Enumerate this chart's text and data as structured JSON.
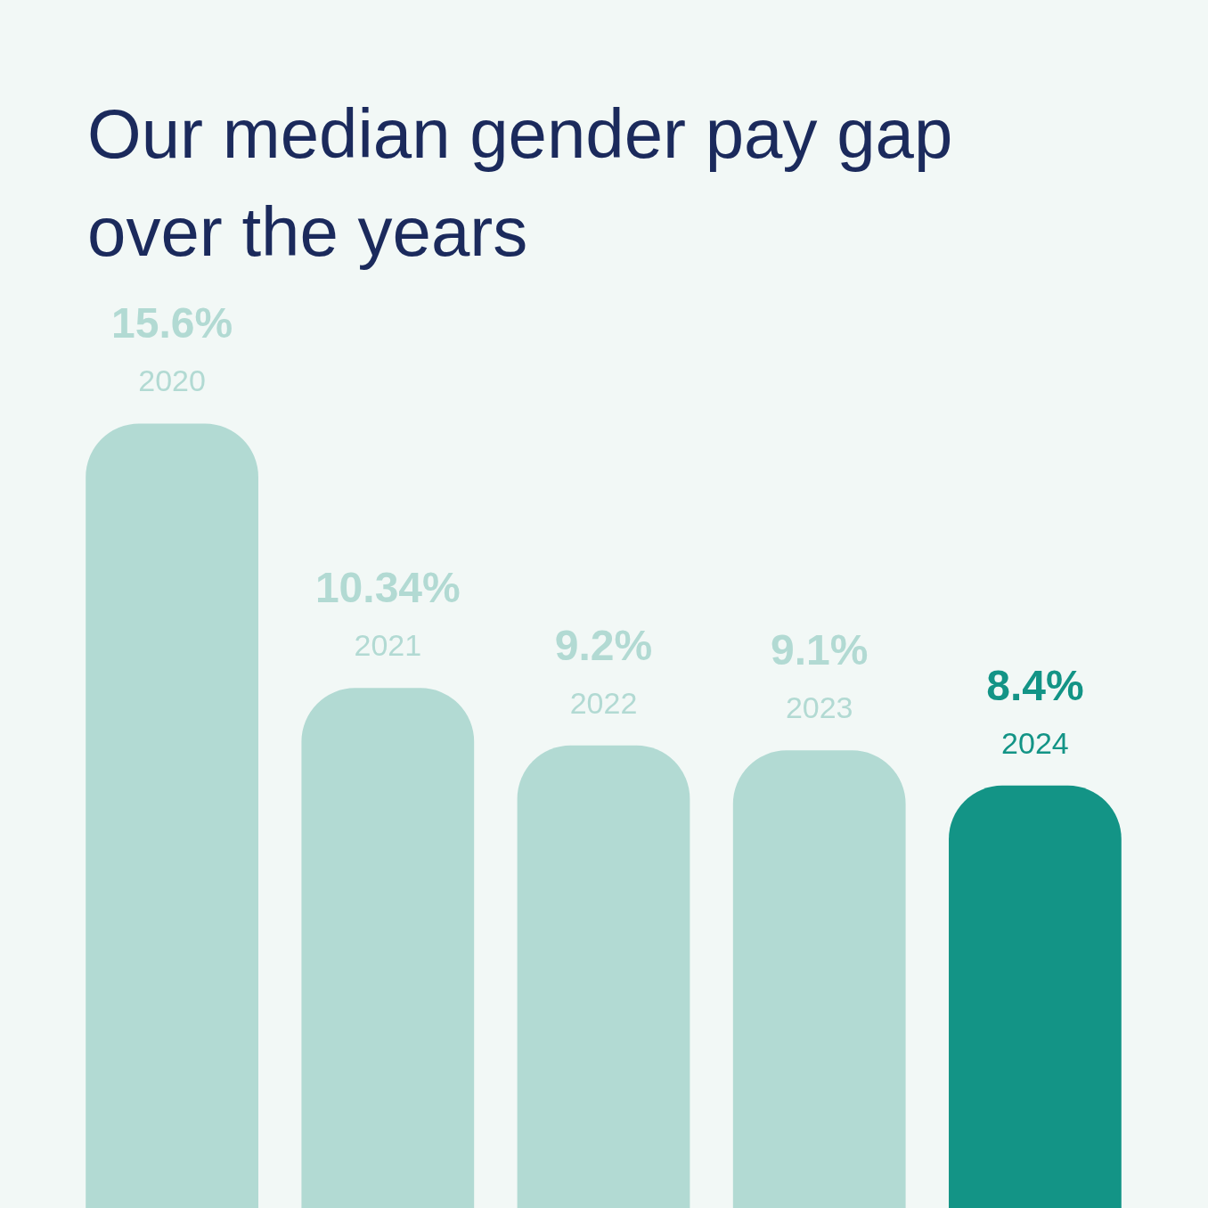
{
  "chart_data": {
    "type": "bar",
    "title": "Our median gender pay gap over the years",
    "categories": [
      "2020",
      "2021",
      "2022",
      "2023",
      "2024"
    ],
    "values": [
      15.6,
      10.34,
      9.2,
      9.1,
      8.4
    ],
    "value_labels": [
      "15.6%",
      "10.34%",
      "9.2%",
      "9.1%",
      "8.4%"
    ],
    "colors": [
      "#b2dad3",
      "#b2dad3",
      "#b2dad3",
      "#b2dad3",
      "#139486"
    ],
    "legend": false
  }
}
